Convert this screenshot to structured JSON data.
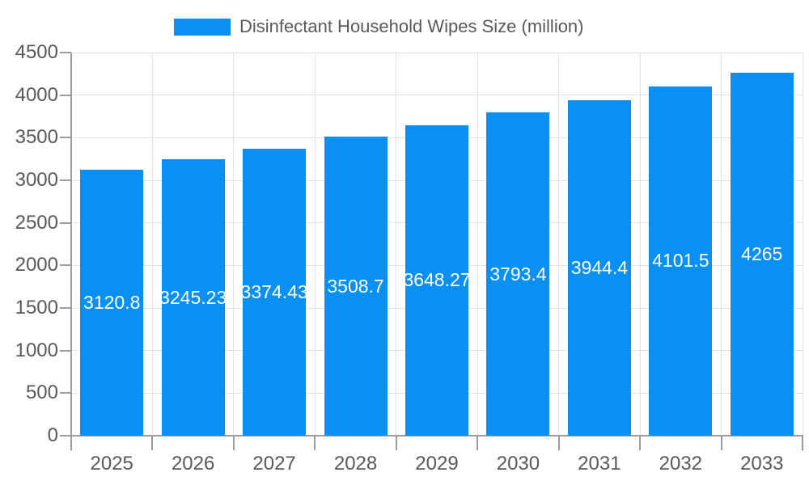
{
  "legend": {
    "label": "Disinfectant Household Wipes Size (million)"
  },
  "colors": {
    "bar": "#0a90f2",
    "bar_label": "#ffffff",
    "axis": "#9c9c9c",
    "grid": "#e2e2e2",
    "text": "#595959",
    "background": "#ffffff"
  },
  "chart_data": {
    "type": "bar",
    "title": "Disinfectant Household Wipes Size (million)",
    "xlabel": "",
    "ylabel": "",
    "categories": [
      "2025",
      "2026",
      "2027",
      "2028",
      "2029",
      "2030",
      "2031",
      "2032",
      "2033"
    ],
    "values": [
      3120.8,
      3245.23,
      3374.43,
      3508.7,
      3648.27,
      3793.4,
      3944.4,
      4101.5,
      4265
    ],
    "bar_labels": [
      "3120.8",
      "3245.23",
      "3374.43",
      "3508.7",
      "3648.27",
      "3793.4",
      "3944.4",
      "4101.5",
      "4265"
    ],
    "ylim": [
      0,
      4500
    ],
    "yticks": [
      0,
      500,
      1000,
      1500,
      2000,
      2500,
      3000,
      3500,
      4000,
      4500
    ],
    "grid": true,
    "legend_position": "top"
  }
}
